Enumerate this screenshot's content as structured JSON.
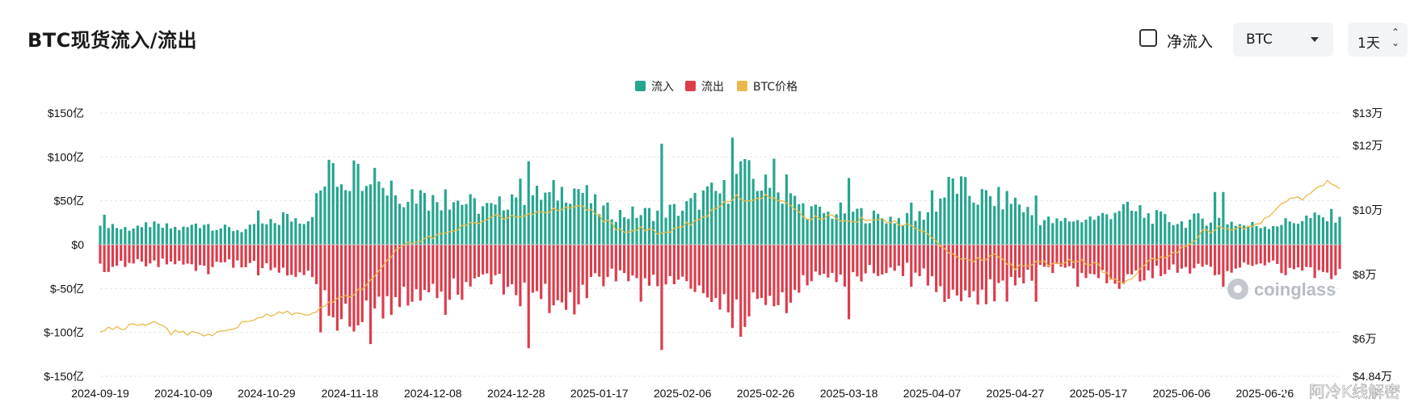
{
  "header": {
    "title": "BTC现货流入/流出",
    "net_flow_label": "净流入",
    "asset_value": "BTC",
    "interval_value": "1天"
  },
  "watermark": "coinglass",
  "footer_text": "阿冷K线解密",
  "colors": {
    "inflow": "#26a68f",
    "outflow": "#dc3d4c",
    "price": "#e9b949"
  },
  "chart_data": {
    "type": "bar",
    "title": "BTC现货流入/流出",
    "legend": {
      "placement": "top-center",
      "entries": [
        "流入",
        "流出",
        "BTC价格"
      ]
    },
    "x_tick_labels": [
      "2024-09-19",
      "2024-10-09",
      "2024-10-29",
      "2024-11-18",
      "2024-12-08",
      "2024-12-28",
      "2025-01-17",
      "2025-02-06",
      "2025-02-26",
      "2025-03-18",
      "2025-04-07",
      "2025-04-27",
      "2025-05-17",
      "2025-06-06",
      "2025-06-26"
    ],
    "y_left": {
      "ylim": [
        -150,
        150
      ],
      "ticks": [
        150,
        100,
        50,
        0,
        -50,
        -100,
        -150
      ],
      "tick_labels": [
        "$150亿",
        "$100亿",
        "$50亿",
        "$0",
        "$-50亿",
        "$-100亿",
        "$-150亿"
      ],
      "unit": "亿 USD"
    },
    "y_right": {
      "ylim": [
        48400,
        130000
      ],
      "ticks": [
        130000,
        120000,
        100000,
        80000,
        60000,
        48400
      ],
      "tick_labels": [
        "$13万",
        "$12万",
        "$10万",
        "$8万",
        "$6万",
        "$4.84万"
      ]
    },
    "grid": true,
    "start_date": "2024-09-19",
    "end_date": "2025-07-14",
    "series": [
      {
        "name": "流入",
        "keypoints": [
          [
            0,
            30
          ],
          [
            5,
            18
          ],
          [
            10,
            22
          ],
          [
            15,
            20
          ],
          [
            20,
            18
          ],
          [
            25,
            25
          ],
          [
            30,
            18
          ],
          [
            35,
            17
          ],
          [
            40,
            22
          ],
          [
            45,
            30
          ],
          [
            50,
            30
          ],
          [
            55,
            80
          ],
          [
            60,
            75
          ],
          [
            65,
            90
          ],
          [
            70,
            55
          ],
          [
            75,
            60
          ],
          [
            80,
            50
          ],
          [
            85,
            52
          ],
          [
            90,
            45
          ],
          [
            95,
            40
          ],
          [
            100,
            62
          ],
          [
            105,
            55
          ],
          [
            110,
            60
          ],
          [
            115,
            65
          ],
          [
            120,
            40
          ],
          [
            125,
            35
          ],
          [
            130,
            35
          ],
          [
            135,
            38
          ],
          [
            140,
            40
          ],
          [
            145,
            55
          ],
          [
            150,
            60
          ],
          [
            155,
            80
          ],
          [
            160,
            65
          ],
          [
            165,
            55
          ],
          [
            170,
            40
          ],
          [
            175,
            35
          ],
          [
            180,
            40
          ],
          [
            185,
            32
          ],
          [
            190,
            30
          ],
          [
            195,
            28
          ],
          [
            200,
            40
          ],
          [
            205,
            70
          ],
          [
            210,
            55
          ],
          [
            215,
            52
          ],
          [
            220,
            50
          ],
          [
            225,
            30
          ],
          [
            230,
            25
          ],
          [
            235,
            30
          ],
          [
            240,
            30
          ],
          [
            245,
            42
          ],
          [
            250,
            35
          ],
          [
            255,
            30
          ],
          [
            260,
            25
          ],
          [
            265,
            30
          ],
          [
            270,
            28
          ],
          [
            275,
            22
          ],
          [
            280,
            22
          ],
          [
            285,
            25
          ],
          [
            290,
            30
          ],
          [
            295,
            30
          ],
          [
            300,
            40
          ],
          [
            305,
            35
          ],
          [
            310,
            32
          ],
          [
            315,
            28
          ],
          [
            320,
            25
          ],
          [
            325,
            22
          ],
          [
            330,
            25
          ],
          [
            335,
            28
          ],
          [
            340,
            20
          ],
          [
            345,
            18
          ],
          [
            350,
            20
          ],
          [
            355,
            18
          ],
          [
            360,
            30
          ]
        ],
        "spikes": [
          [
            10,
            20
          ],
          [
            12,
            20
          ],
          [
            23,
            24
          ],
          [
            38,
            39
          ],
          [
            44,
            37
          ],
          [
            56,
            93
          ],
          [
            61,
            96
          ],
          [
            62,
            92
          ],
          [
            67,
            72
          ],
          [
            70,
            73
          ],
          [
            78,
            59
          ],
          [
            83,
            63
          ],
          [
            103,
            95
          ],
          [
            108,
            60
          ],
          [
            112,
            48
          ],
          [
            135,
            115
          ],
          [
            152,
            122
          ],
          [
            154,
            95
          ],
          [
            162,
            98
          ],
          [
            165,
            80
          ],
          [
            180,
            76
          ],
          [
            195,
            48
          ],
          [
            200,
            62
          ],
          [
            206,
            58
          ],
          [
            225,
            56
          ],
          [
            235,
            28
          ],
          [
            250,
            45
          ],
          [
            268,
            60
          ],
          [
            270,
            60
          ],
          [
            300,
            45
          ],
          [
            305,
            58
          ],
          [
            310,
            45
          ],
          [
            340,
            60
          ],
          [
            355,
            40
          ]
        ]
      },
      {
        "name": "流出",
        "keypoints": [
          [
            0,
            -30
          ],
          [
            5,
            -20
          ],
          [
            10,
            -22
          ],
          [
            15,
            -20
          ],
          [
            20,
            -22
          ],
          [
            25,
            -28
          ],
          [
            30,
            -22
          ],
          [
            35,
            -22
          ],
          [
            40,
            -25
          ],
          [
            45,
            -30
          ],
          [
            50,
            -30
          ],
          [
            55,
            -80
          ],
          [
            60,
            -75
          ],
          [
            65,
            -90
          ],
          [
            70,
            -55
          ],
          [
            75,
            -60
          ],
          [
            80,
            -50
          ],
          [
            85,
            -52
          ],
          [
            90,
            -45
          ],
          [
            95,
            -40
          ],
          [
            100,
            -62
          ],
          [
            105,
            -55
          ],
          [
            110,
            -60
          ],
          [
            115,
            -65
          ],
          [
            120,
            -40
          ],
          [
            125,
            -35
          ],
          [
            130,
            -40
          ],
          [
            135,
            -38
          ],
          [
            140,
            -42
          ],
          [
            145,
            -55
          ],
          [
            150,
            -60
          ],
          [
            155,
            -80
          ],
          [
            160,
            -65
          ],
          [
            165,
            -55
          ],
          [
            170,
            -40
          ],
          [
            175,
            -35
          ],
          [
            180,
            -40
          ],
          [
            185,
            -32
          ],
          [
            190,
            -30
          ],
          [
            195,
            -28
          ],
          [
            200,
            -42
          ],
          [
            205,
            -70
          ],
          [
            210,
            -55
          ],
          [
            215,
            -52
          ],
          [
            220,
            -50
          ],
          [
            225,
            -30
          ],
          [
            230,
            -25
          ],
          [
            235,
            -30
          ],
          [
            240,
            -30
          ],
          [
            245,
            -42
          ],
          [
            250,
            -35
          ],
          [
            255,
            -30
          ],
          [
            260,
            -25
          ],
          [
            265,
            -30
          ],
          [
            270,
            -28
          ],
          [
            275,
            -22
          ],
          [
            280,
            -22
          ],
          [
            285,
            -28
          ],
          [
            290,
            -30
          ],
          [
            295,
            -30
          ],
          [
            300,
            -42
          ],
          [
            305,
            -38
          ],
          [
            310,
            -32
          ],
          [
            315,
            -28
          ],
          [
            320,
            -25
          ],
          [
            325,
            -22
          ],
          [
            330,
            -25
          ],
          [
            335,
            -30
          ],
          [
            340,
            -22
          ],
          [
            345,
            -20
          ],
          [
            350,
            -22
          ],
          [
            355,
            -20
          ],
          [
            360,
            -40
          ]
        ],
        "spikes": [
          [
            23,
            -30
          ],
          [
            38,
            -35
          ],
          [
            53,
            -100
          ],
          [
            61,
            -99
          ],
          [
            62,
            -92
          ],
          [
            70,
            -80
          ],
          [
            83,
            -80
          ],
          [
            103,
            -118
          ],
          [
            108,
            -78
          ],
          [
            130,
            -65
          ],
          [
            135,
            -120
          ],
          [
            152,
            -95
          ],
          [
            154,
            -105
          ],
          [
            165,
            -78
          ],
          [
            180,
            -85
          ],
          [
            195,
            -48
          ],
          [
            206,
            -58
          ],
          [
            225,
            -65
          ],
          [
            235,
            -48
          ],
          [
            243,
            -40
          ],
          [
            250,
            -42
          ],
          [
            270,
            -48
          ],
          [
            300,
            -45
          ],
          [
            305,
            -55
          ],
          [
            310,
            -40
          ],
          [
            340,
            -50
          ],
          [
            355,
            -40
          ]
        ]
      },
      {
        "name": "BTC价格",
        "keypoints": [
          [
            0,
            63000
          ],
          [
            8,
            64000
          ],
          [
            13,
            65500
          ],
          [
            17,
            62000
          ],
          [
            25,
            61500
          ],
          [
            30,
            62000
          ],
          [
            35,
            65500
          ],
          [
            40,
            67500
          ],
          [
            45,
            68500
          ],
          [
            50,
            67000
          ],
          [
            55,
            71500
          ],
          [
            60,
            73000
          ],
          [
            63,
            75500
          ],
          [
            67,
            80500
          ],
          [
            70,
            86000
          ],
          [
            75,
            90000
          ],
          [
            80,
            91500
          ],
          [
            85,
            94000
          ],
          [
            90,
            96000
          ],
          [
            95,
            98000
          ],
          [
            100,
            97500
          ],
          [
            105,
            99000
          ],
          [
            110,
            100000
          ],
          [
            114,
            101500
          ],
          [
            118,
            99500
          ],
          [
            122,
            96000
          ],
          [
            126,
            93000
          ],
          [
            130,
            94500
          ],
          [
            135,
            92500
          ],
          [
            140,
            95000
          ],
          [
            145,
            97500
          ],
          [
            150,
            102000
          ],
          [
            153,
            104000
          ],
          [
            157,
            103000
          ],
          [
            160,
            104500
          ],
          [
            165,
            101500
          ],
          [
            170,
            97500
          ],
          [
            175,
            98000
          ],
          [
            180,
            96500
          ],
          [
            185,
            97500
          ],
          [
            190,
            96500
          ],
          [
            195,
            95000
          ],
          [
            200,
            91000
          ],
          [
            205,
            86000
          ],
          [
            210,
            84000
          ],
          [
            215,
            86000
          ],
          [
            220,
            82000
          ],
          [
            225,
            84000
          ],
          [
            230,
            83000
          ],
          [
            235,
            84500
          ],
          [
            240,
            82500
          ],
          [
            243,
            79000
          ],
          [
            245,
            77000
          ],
          [
            248,
            78500
          ],
          [
            252,
            84000
          ],
          [
            256,
            85000
          ],
          [
            260,
            88000
          ],
          [
            265,
            93000
          ],
          [
            270,
            94500
          ],
          [
            275,
            94000
          ],
          [
            280,
            97000
          ],
          [
            285,
            103000
          ],
          [
            290,
            104000
          ],
          [
            295,
            109000
          ],
          [
            300,
            106000
          ],
          [
            305,
            104500
          ],
          [
            310,
            105500
          ],
          [
            315,
            108000
          ],
          [
            320,
            107500
          ],
          [
            325,
            104000
          ],
          [
            330,
            105500
          ],
          [
            335,
            101500
          ],
          [
            340,
            107000
          ],
          [
            345,
            108000
          ],
          [
            350,
            109000
          ],
          [
            352,
            111000
          ],
          [
            355,
            117500
          ],
          [
            358,
            119000
          ],
          [
            360,
            118500
          ]
        ]
      }
    ]
  }
}
